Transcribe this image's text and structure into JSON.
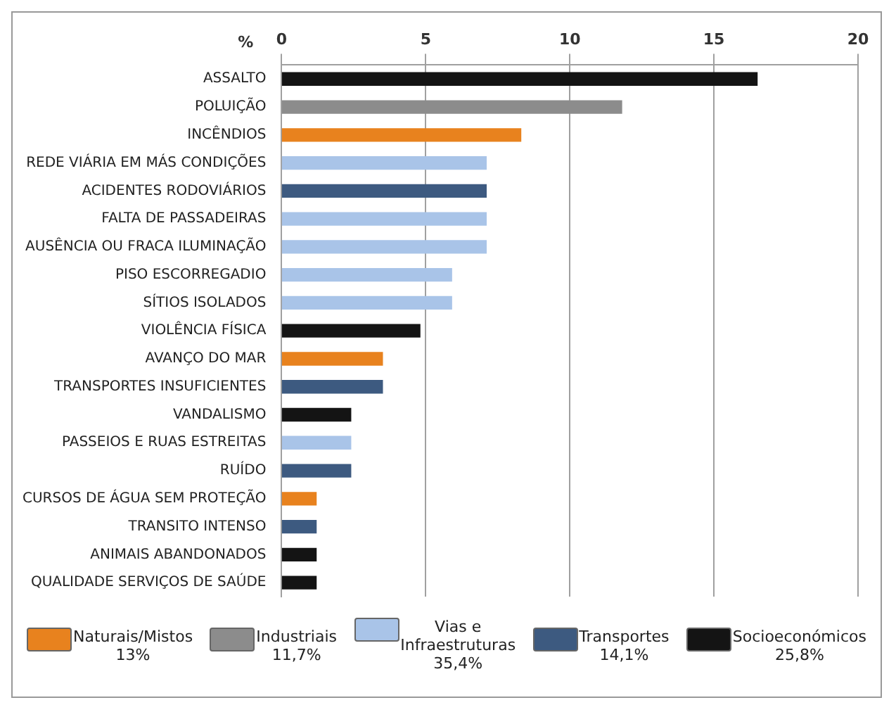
{
  "chart_data": {
    "type": "bar",
    "orientation": "horizontal",
    "xlabel": "%",
    "categories": [
      "ASSALTO",
      "POLUIÇÃO",
      "INCÊNDIOS",
      "REDE VIÁRIA EM MÁS CONDIÇÕES",
      "ACIDENTES RODOVIÁRIOS",
      "FALTA DE PASSADEIRAS",
      "AUSÊNCIA OU FRACA ILUMINAÇÃO",
      "PISO ESCORREGADIO",
      "SÍTIOS ISOLADOS",
      "VIOLÊNCIA FÍSICA",
      "AVANÇO DO MAR",
      "TRANSPORTES INSUFICIENTES",
      "VANDALISMO",
      "PASSEIOS E RUAS ESTREITAS",
      "RUÍDO",
      "CURSOS DE ÁGUA SEM PROTEÇÃO",
      "TRANSITO INTENSO",
      "ANIMAIS ABANDONADOS",
      "QUALIDADE SERVIÇOS DE SAÚDE"
    ],
    "series": [
      {
        "name": "Naturais/Mistos\n13%",
        "color": "#e8821e",
        "values": [
          null,
          null,
          8.3,
          null,
          null,
          null,
          null,
          null,
          null,
          null,
          3.5,
          null,
          null,
          null,
          null,
          1.2,
          null,
          null,
          null
        ]
      },
      {
        "name": "Industriais\n11,7%",
        "color": "#8c8c8c",
        "values": [
          null,
          11.8,
          null,
          null,
          null,
          null,
          null,
          null,
          null,
          null,
          null,
          null,
          null,
          null,
          null,
          null,
          null,
          null,
          null
        ]
      },
      {
        "name": "Vias e\nInfraestruturas\n35,4%",
        "color": "#a9c4e8",
        "values": [
          null,
          null,
          null,
          7.1,
          null,
          7.1,
          7.1,
          5.9,
          5.9,
          null,
          null,
          null,
          null,
          2.4,
          null,
          null,
          null,
          null,
          null
        ]
      },
      {
        "name": "Transportes\n14,1%",
        "color": "#3d5a80",
        "values": [
          null,
          null,
          null,
          null,
          7.1,
          null,
          null,
          null,
          null,
          null,
          null,
          3.5,
          null,
          null,
          2.4,
          null,
          1.2,
          null,
          null
        ]
      },
      {
        "name": "Socioeconómicos\n25,8%",
        "color": "#141414",
        "values": [
          16.5,
          null,
          null,
          null,
          null,
          null,
          null,
          null,
          null,
          4.8,
          null,
          null,
          2.4,
          null,
          null,
          null,
          null,
          1.2,
          1.2
        ]
      }
    ],
    "xlim": [
      0,
      20
    ],
    "xticks": [
      0,
      5,
      10,
      15,
      20
    ],
    "grid": "x",
    "legend": "bottom"
  }
}
